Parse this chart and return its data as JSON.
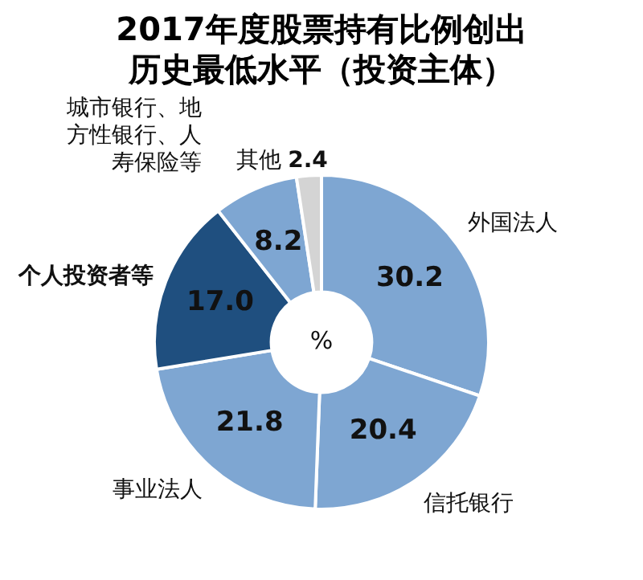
{
  "chart_data": {
    "type": "donut",
    "title": "2017年度股票持有比例创出历史最低水平（投资主体）",
    "categories": [
      "外国法人",
      "信托银行",
      "事业法人",
      "个人投资者等",
      "城市银行、地方性银行、人寿保险等",
      "其他"
    ],
    "values": [
      30.2,
      20.4,
      21.8,
      17.0,
      8.2,
      2.4
    ],
    "colors": [
      "#7ea6d2",
      "#7ea6d2",
      "#7ea6d2",
      "#1f4f7f",
      "#7ea6d2",
      "#d4d4d4"
    ],
    "value_labels": [
      "30.2",
      "20.4",
      "21.8",
      "17.0",
      "8.2",
      "2.4"
    ],
    "legend": false,
    "annotations": [
      "%"
    ]
  }
}
